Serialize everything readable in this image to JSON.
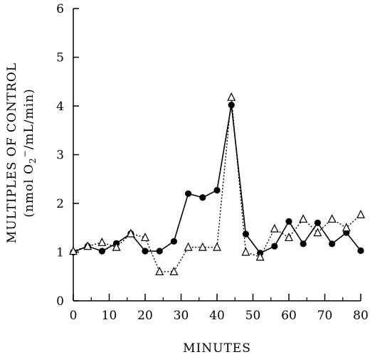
{
  "chart_data": {
    "type": "line",
    "title": "",
    "xlabel": "MINUTES",
    "ylabel_line1": "MULTIPLES OF CONTROL",
    "ylabel_line2_prefix": "(nmol O",
    "ylabel_line2_sub": "2",
    "ylabel_line2_sup": "−",
    "ylabel_line2_suffix": "/mL/min)",
    "xlim": [
      0,
      80
    ],
    "ylim": [
      0,
      6
    ],
    "xticks": [
      0,
      10,
      20,
      30,
      40,
      50,
      60,
      70,
      80
    ],
    "yticks": [
      0,
      1,
      2,
      3,
      4,
      5,
      6
    ],
    "grid": false,
    "legend": "none",
    "series": [
      {
        "marker": "filled-circle",
        "line_style": "solid",
        "color": "#000000",
        "x": [
          0,
          4,
          8,
          12,
          16,
          20,
          24,
          28,
          32,
          36,
          40,
          44,
          48,
          52,
          56,
          60,
          64,
          68,
          72,
          76,
          80
        ],
        "y": [
          1.0,
          1.12,
          1.02,
          1.18,
          1.38,
          1.02,
          1.02,
          1.22,
          2.2,
          2.12,
          2.27,
          4.02,
          1.37,
          0.98,
          1.12,
          1.63,
          1.17,
          1.6,
          1.17,
          1.4,
          1.03
        ]
      },
      {
        "marker": "open-triangle",
        "line_style": "dotted",
        "color": "#000000",
        "x": [
          0,
          4,
          8,
          12,
          16,
          20,
          24,
          28,
          32,
          36,
          40,
          44,
          48,
          52,
          56,
          60,
          64,
          68,
          72,
          76,
          80
        ],
        "y": [
          1.02,
          1.12,
          1.2,
          1.1,
          1.38,
          1.3,
          0.6,
          0.6,
          1.1,
          1.1,
          1.1,
          4.18,
          1.0,
          0.9,
          1.48,
          1.3,
          1.68,
          1.4,
          1.68,
          1.5,
          1.77
        ]
      }
    ]
  }
}
